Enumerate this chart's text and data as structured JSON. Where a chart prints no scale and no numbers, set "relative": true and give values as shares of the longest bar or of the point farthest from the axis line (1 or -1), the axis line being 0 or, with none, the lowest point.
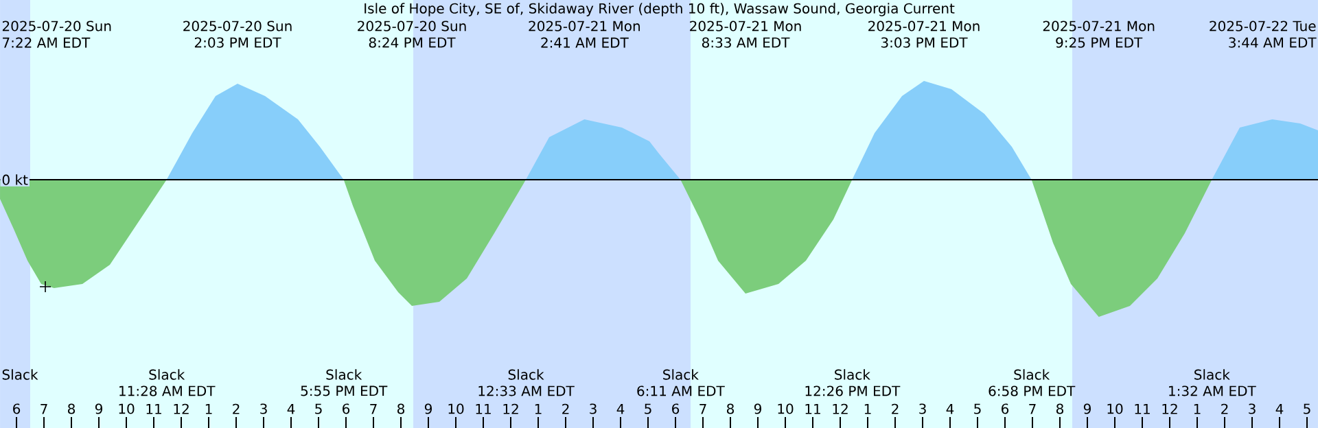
{
  "chart_data": {
    "type": "area",
    "title": "Isle of Hope City, SE of, Skidaway River (depth 10 ft), Wassaw Sound, Georgia Current",
    "relative": true,
    "grid": false,
    "tick_labels": "x",
    "xlim": [
      "2025-07-20T05:24",
      "2025-07-22T05:24"
    ],
    "xticks": [
      {
        "value": "2025-07-20T06:00",
        "label": "6"
      },
      {
        "value": "2025-07-20T07:00",
        "label": "7"
      },
      {
        "value": "2025-07-20T08:00",
        "label": "8"
      },
      {
        "value": "2025-07-20T09:00",
        "label": "9"
      },
      {
        "value": "2025-07-20T10:00",
        "label": "10"
      },
      {
        "value": "2025-07-20T11:00",
        "label": "11"
      },
      {
        "value": "2025-07-20T12:00",
        "label": "12"
      },
      {
        "value": "2025-07-20T13:00",
        "label": "1"
      },
      {
        "value": "2025-07-20T14:00",
        "label": "2"
      },
      {
        "value": "2025-07-20T15:00",
        "label": "3"
      },
      {
        "value": "2025-07-20T16:00",
        "label": "4"
      },
      {
        "value": "2025-07-20T17:00",
        "label": "5"
      },
      {
        "value": "2025-07-20T18:00",
        "label": "6"
      },
      {
        "value": "2025-07-20T19:00",
        "label": "7"
      },
      {
        "value": "2025-07-20T20:00",
        "label": "8"
      },
      {
        "value": "2025-07-20T21:00",
        "label": "9"
      },
      {
        "value": "2025-07-20T22:00",
        "label": "10"
      },
      {
        "value": "2025-07-20T23:00",
        "label": "11"
      },
      {
        "value": "2025-07-21T00:00",
        "label": "12"
      },
      {
        "value": "2025-07-21T01:00",
        "label": "1"
      },
      {
        "value": "2025-07-21T02:00",
        "label": "2"
      },
      {
        "value": "2025-07-21T03:00",
        "label": "3"
      },
      {
        "value": "2025-07-21T04:00",
        "label": "4"
      },
      {
        "value": "2025-07-21T05:00",
        "label": "5"
      },
      {
        "value": "2025-07-21T06:00",
        "label": "6"
      },
      {
        "value": "2025-07-21T07:00",
        "label": "7"
      },
      {
        "value": "2025-07-21T08:00",
        "label": "8"
      },
      {
        "value": "2025-07-21T09:00",
        "label": "9"
      },
      {
        "value": "2025-07-21T10:00",
        "label": "10"
      },
      {
        "value": "2025-07-21T11:00",
        "label": "11"
      },
      {
        "value": "2025-07-21T12:00",
        "label": "12"
      },
      {
        "value": "2025-07-21T13:00",
        "label": "1"
      },
      {
        "value": "2025-07-21T14:00",
        "label": "2"
      },
      {
        "value": "2025-07-21T15:00",
        "label": "3"
      },
      {
        "value": "2025-07-21T16:00",
        "label": "4"
      },
      {
        "value": "2025-07-21T17:00",
        "label": "5"
      },
      {
        "value": "2025-07-21T18:00",
        "label": "6"
      },
      {
        "value": "2025-07-21T19:00",
        "label": "7"
      },
      {
        "value": "2025-07-21T20:00",
        "label": "8"
      },
      {
        "value": "2025-07-21T21:00",
        "label": "9"
      },
      {
        "value": "2025-07-21T22:00",
        "label": "10"
      },
      {
        "value": "2025-07-21T23:00",
        "label": "11"
      },
      {
        "value": "2025-07-22T00:00",
        "label": "12"
      },
      {
        "value": "2025-07-22T01:00",
        "label": "1"
      },
      {
        "value": "2025-07-22T02:00",
        "label": "2"
      },
      {
        "value": "2025-07-22T03:00",
        "label": "3"
      },
      {
        "value": "2025-07-22T04:00",
        "label": "4"
      },
      {
        "value": "2025-07-22T05:00",
        "label": "5"
      }
    ],
    "bands": [
      {
        "axis": "x",
        "from": "2025-07-20T05:24",
        "to": "2025-07-20T06:30",
        "color": "#cce0ff"
      },
      {
        "axis": "x",
        "from": "2025-07-20T06:30",
        "to": "2025-07-20T20:27",
        "color": "#e0ffff"
      },
      {
        "axis": "x",
        "from": "2025-07-20T20:27",
        "to": "2025-07-21T06:33",
        "color": "#cce0ff"
      },
      {
        "axis": "x",
        "from": "2025-07-21T06:33",
        "to": "2025-07-21T20:27",
        "color": "#e0ffff"
      },
      {
        "axis": "x",
        "from": "2025-07-21T20:27",
        "to": "2025-07-22T05:24",
        "color": "#cce0ff"
      }
    ],
    "ref_lines": [
      {
        "axis": "y",
        "value": 0,
        "label": "0 kt",
        "color": "#000000"
      }
    ],
    "series": [
      {
        "color": "#7ccd7c",
        "x": [
          "2025-07-20T05:24",
          "2025-07-20T05:54",
          "2025-07-20T06:24",
          "2025-07-20T06:54",
          "2025-07-20T07:22",
          "2025-07-20T08:24",
          "2025-07-20T09:24",
          "2025-07-20T10:24",
          "2025-07-20T11:28",
          null,
          "2025-07-20T17:55",
          "2025-07-20T18:15",
          "2025-07-20T19:03",
          "2025-07-20T19:54",
          "2025-07-20T20:24",
          "2025-07-20T21:24",
          "2025-07-20T22:24",
          "2025-07-20T23:24",
          "2025-07-21T00:33",
          null,
          "2025-07-21T06:11",
          "2025-07-21T06:54",
          "2025-07-21T07:33",
          "2025-07-21T08:33",
          "2025-07-21T09:45",
          "2025-07-21T10:45",
          "2025-07-21T11:45",
          "2025-07-21T12:26",
          null,
          "2025-07-21T18:58",
          "2025-07-21T19:45",
          "2025-07-21T20:24",
          "2025-07-21T21:25",
          "2025-07-21T22:33",
          "2025-07-21T23:33",
          "2025-07-22T00:33",
          "2025-07-22T01:32"
        ],
        "values": [
          -0.14,
          -0.36,
          -0.59,
          -0.76,
          -0.79,
          -0.76,
          -0.62,
          -0.32,
          0,
          null,
          0,
          -0.19,
          -0.59,
          -0.82,
          -0.92,
          -0.89,
          -0.72,
          -0.39,
          0,
          null,
          0,
          -0.29,
          -0.59,
          -0.83,
          -0.76,
          -0.59,
          -0.29,
          0,
          null,
          0,
          -0.46,
          -0.76,
          -1.0,
          -0.92,
          -0.72,
          -0.39,
          0
        ]
      },
      {
        "color": "#87cefa",
        "x": [
          "2025-07-20T11:28",
          "2025-07-20T12:24",
          "2025-07-20T13:15",
          "2025-07-20T14:03",
          "2025-07-20T15:03",
          "2025-07-20T16:15",
          "2025-07-20T17:03",
          "2025-07-20T17:55",
          null,
          "2025-07-21T00:33",
          "2025-07-21T01:24",
          "2025-07-21T02:41",
          "2025-07-21T04:03",
          "2025-07-21T05:03",
          "2025-07-21T05:24",
          "2025-07-21T06:11",
          null,
          "2025-07-21T12:26",
          "2025-07-21T13:15",
          "2025-07-21T14:15",
          "2025-07-21T15:03",
          "2025-07-21T16:03",
          "2025-07-21T17:15",
          "2025-07-21T18:15",
          "2025-07-21T18:58",
          null,
          "2025-07-22T01:32",
          "2025-07-22T02:33",
          "2025-07-22T03:44",
          "2025-07-22T04:45",
          "2025-07-22T05:24"
        ],
        "values": [
          0,
          0.34,
          0.61,
          0.7,
          0.61,
          0.44,
          0.24,
          0,
          null,
          0,
          0.31,
          0.44,
          0.38,
          0.28,
          0.19,
          0,
          null,
          0,
          0.34,
          0.61,
          0.72,
          0.66,
          0.48,
          0.24,
          0,
          null,
          0,
          0.38,
          0.44,
          0.41,
          0.36
        ]
      },
      {
        "type": "scatter",
        "color": "#000000",
        "marker": "cross",
        "x": [
          "2025-07-20T07:03"
        ],
        "values": [
          -0.78
        ]
      }
    ],
    "annotations": [
      "2025-07-20 Sun",
      "7:22 AM EDT",
      "2025-07-20 Sun",
      "2:03 PM EDT",
      "2025-07-20 Sun",
      "8:24 PM EDT",
      "2025-07-21 Mon",
      "2:41 AM EDT",
      "2025-07-21 Mon",
      "8:33 AM EDT",
      "2025-07-21 Mon",
      "3:03 PM EDT",
      "2025-07-21 Mon",
      "9:25 PM EDT",
      "2025-07-22 Tue",
      "3:44 AM EDT",
      "Slack",
      "Slack",
      "11:28 AM EDT",
      "Slack",
      "5:55 PM EDT",
      "Slack",
      "12:33 AM EDT",
      "Slack",
      "6:11 AM EDT",
      "Slack",
      "12:26 PM EDT",
      "Slack",
      "6:58 PM EDT",
      "Slack",
      "1:32 AM EDT"
    ]
  }
}
